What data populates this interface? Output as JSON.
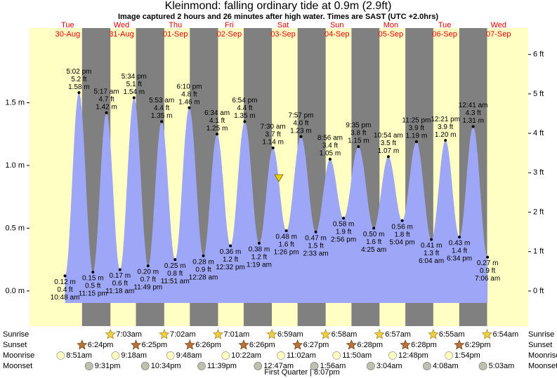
{
  "chart_data": {
    "type": "tide",
    "title": "Kleinmond: falling  ordinary tide at 0.9m (2.9ft)",
    "subtitle": "Image captured 2 hours and 26 minutes after high water. Times are SAST (UTC +2.0hrs)",
    "ylim": [
      -0.28,
      2.095
    ],
    "yticks": [
      {
        "value": 0,
        "label": "0.0 m"
      },
      {
        "value": 0.5,
        "label": "0.5 m"
      },
      {
        "value": 1,
        "label": "1.0 m"
      },
      {
        "value": 1.5,
        "label": "1.5 m"
      }
    ],
    "y2lim": [
      -0.89,
      6.67
    ],
    "y2ticks": [
      {
        "value": 0,
        "label": "0 ft"
      },
      {
        "value": 1,
        "label": "1 ft"
      },
      {
        "value": 2,
        "label": "2 ft"
      },
      {
        "value": 3,
        "label": "3 ft"
      },
      {
        "value": 4,
        "label": "4 ft"
      },
      {
        "value": 5,
        "label": "5 ft"
      },
      {
        "value": 6,
        "label": "6 ft"
      }
    ],
    "row_labels": [
      "Sunrise",
      "Sunset",
      "Moonrise",
      "Moonset"
    ],
    "moon_phase": "First Quarter | 8:07pm",
    "days": [
      {
        "dow": "Tue",
        "date": "30-Aug",
        "sunset": "6:24pm",
        "moonrise": "8:51am",
        "moonset": "9:31pm",
        "tides": [
          {
            "time": "10:48 am",
            "ft": "0.4 ft",
            "value": 0.12,
            "value_label": "0.12 m"
          },
          {
            "time": "5:02 pm",
            "ft": "5.2 ft",
            "value": 1.58,
            "value_label": "1.58 m"
          },
          {
            "time": "11:15 pm",
            "ft": "0.5 ft",
            "value": 0.15,
            "value_label": "0.15 m"
          }
        ]
      },
      {
        "dow": "Wed",
        "date": "31-Aug",
        "sunrise": "7:03am",
        "sunset": "6:25pm",
        "moonrise": "9:18am",
        "moonset": "10:34pm",
        "tides": [
          {
            "time": "5:17 am",
            "ft": "4.7 ft",
            "value": 1.42,
            "value_label": "1.42 m"
          },
          {
            "time": "11:18 am",
            "ft": "0.6 ft",
            "value": 0.17,
            "value_label": "0.17 m"
          },
          {
            "time": "5:34 pm",
            "ft": "5.1 ft",
            "value": 1.54,
            "value_label": "1.54 m"
          },
          {
            "time": "11:49 pm",
            "ft": "0.7 ft",
            "value": 0.2,
            "value_label": "0.20 m"
          }
        ]
      },
      {
        "dow": "Thu",
        "date": "01-Sep",
        "sunrise": "7:02am",
        "sunset": "6:26pm",
        "moonrise": "9:48am",
        "moonset": "11:39pm",
        "tides": [
          {
            "time": "5:53 am",
            "ft": "4.4 ft",
            "value": 1.35,
            "value_label": "1.35 m"
          },
          {
            "time": "11:51 am",
            "ft": "0.8 ft",
            "value": 0.25,
            "value_label": "0.25 m"
          },
          {
            "time": "6:10 pm",
            "ft": "4.8 ft",
            "value": 1.46,
            "value_label": "1.46 m"
          }
        ]
      },
      {
        "dow": "Fri",
        "date": "02-Sep",
        "sunrise": "7:01am",
        "sunset": "6:26pm",
        "moonrise": "10:22am",
        "tides": [
          {
            "time": "12:28 am",
            "ft": "0.9 ft",
            "value": 0.28,
            "value_label": "0.28 m"
          },
          {
            "time": "6:34 am",
            "ft": "4.1 ft",
            "value": 1.25,
            "value_label": "1.25 m"
          },
          {
            "time": "12:32 pm",
            "ft": "1.2 ft",
            "value": 0.36,
            "value_label": "0.36 m"
          },
          {
            "time": "6:54 pm",
            "ft": "4.4 ft",
            "value": 1.35,
            "value_label": "1.35 m"
          }
        ]
      },
      {
        "dow": "Sat",
        "date": "03-Sep",
        "sunrise": "6:59am",
        "sunset": "6:27pm",
        "moonrise": "11:02am",
        "moonset": "12:47am",
        "tides": [
          {
            "time": "1:19 am",
            "ft": "1.2 ft",
            "value": 0.38,
            "value_label": "0.38 m"
          },
          {
            "time": "7:30 am",
            "ft": "3.7 ft",
            "value": 1.14,
            "value_label": "1.14 m"
          },
          {
            "time": "1:26 pm",
            "ft": "1.6 ft",
            "value": 0.48,
            "value_label": "0.48 m"
          },
          {
            "time": "7:57 pm",
            "ft": "4.0 ft",
            "value": 1.23,
            "value_label": "1.23 m"
          }
        ]
      },
      {
        "dow": "Sun",
        "date": "04-Sep",
        "sunrise": "6:58am",
        "sunset": "6:28pm",
        "moonrise": "11:50am",
        "moonset": "1:56am",
        "tides": [
          {
            "time": "2:33 am",
            "ft": "1.5 ft",
            "value": 0.47,
            "value_label": "0.47 m"
          },
          {
            "time": "8:56 am",
            "ft": "3.4 ft",
            "value": 1.05,
            "value_label": "1.05 m"
          },
          {
            "time": "2:56 pm",
            "ft": "1.9 ft",
            "value": 0.58,
            "value_label": "0.58 m"
          },
          {
            "time": "9:35 pm",
            "ft": "3.8 ft",
            "value": 1.15,
            "value_label": "1.15 m"
          }
        ]
      },
      {
        "dow": "Mon",
        "date": "05-Sep",
        "sunrise": "6:57am",
        "sunset": "6:28pm",
        "moonrise": "12:48pm",
        "moonset": "3:04am",
        "tides": [
          {
            "time": "4:25 am",
            "ft": "1.6 ft",
            "value": 0.5,
            "value_label": "0.50 m"
          },
          {
            "time": "10:54 am",
            "ft": "3.5 ft",
            "value": 1.07,
            "value_label": "1.07 m"
          },
          {
            "time": "5:04 pm",
            "ft": "1.8 ft",
            "value": 0.56,
            "value_label": "0.56 m"
          },
          {
            "time": "11:25 pm",
            "ft": "3.9 ft",
            "value": 1.19,
            "value_label": "1.19 m"
          }
        ]
      },
      {
        "dow": "Tue",
        "date": "06-Sep",
        "sunrise": "6:55am",
        "sunset": "6:29pm",
        "moonrise": "1:54pm",
        "moonset": "4:08am",
        "tides": [
          {
            "time": "6:04 am",
            "ft": "1.3 ft",
            "value": 0.41,
            "value_label": "0.41 m"
          },
          {
            "time": "12:21 pm",
            "ft": "3.9 ft",
            "value": 1.2,
            "value_label": "1.20 m"
          },
          {
            "time": "6:34 pm",
            "ft": "1.4 ft",
            "value": 0.43,
            "value_label": "0.43 m"
          }
        ]
      },
      {
        "dow": "Wed",
        "date": "07-Sep",
        "sunrise": "6:54am",
        "moonset": "5:03am",
        "tides": [
          {
            "time": "12:41 am",
            "ft": "4.3 ft",
            "value": 1.31,
            "value_label": "1.31 m"
          },
          {
            "time": "7:06 am",
            "ft": "0.9 ft",
            "value": 0.27,
            "value_label": "0.27 m"
          }
        ]
      }
    ]
  }
}
